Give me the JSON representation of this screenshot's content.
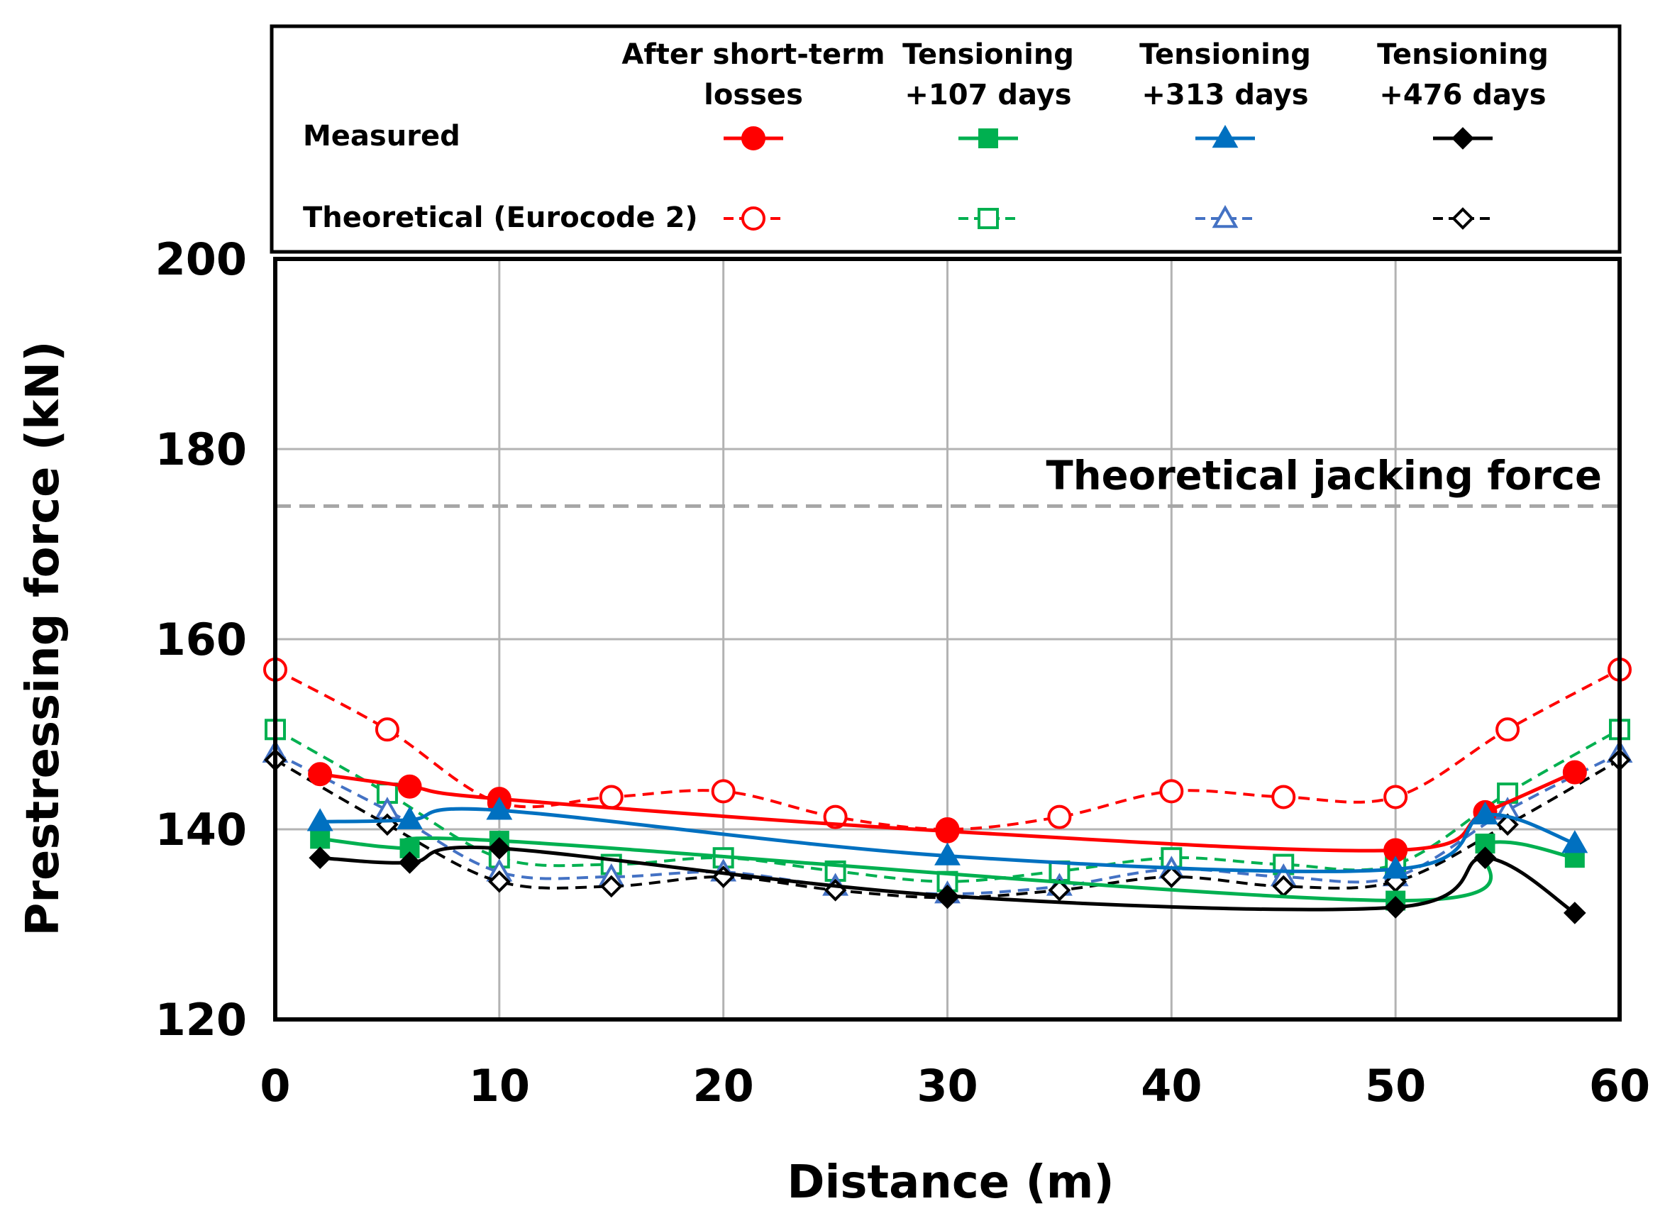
{
  "chart_data": {
    "type": "line",
    "title": "",
    "xlabel": "Distance (m)",
    "ylabel": "Prestressing force (kN)",
    "xlim": [
      0,
      60
    ],
    "ylim": [
      120,
      200
    ],
    "xticks": [
      0,
      10,
      20,
      30,
      40,
      50,
      60
    ],
    "yticks": [
      120,
      140,
      160,
      180,
      200
    ],
    "grid": true,
    "legend": {
      "placement": "top",
      "row_labels": {
        "measured": "Measured",
        "theoretical": "Theoretical (Eurocode 2)"
      },
      "columns": [
        {
          "line1": "After short-term",
          "line2": "losses"
        },
        {
          "line1": "Tensioning",
          "line2": "+107 days"
        },
        {
          "line1": "Tensioning",
          "line2": "+313 days"
        },
        {
          "line1": "Tensioning",
          "line2": "+476 days"
        }
      ]
    },
    "reference_line": {
      "label": "Theoretical jacking force",
      "value": 174,
      "color": "#a6a6a6"
    },
    "series": [
      {
        "name": "Measured - After short-term losses",
        "group": "measured",
        "color": "#ff0000",
        "marker": "circle",
        "filled": true,
        "dashed": false,
        "x": [
          2,
          6,
          10,
          30,
          50,
          54,
          58
        ],
        "y": [
          145.8,
          144.5,
          143.2,
          139.8,
          137.8,
          141.8,
          146.0
        ]
      },
      {
        "name": "Measured - Tensioning +107 days",
        "group": "measured",
        "color": "#00b050",
        "marker": "square",
        "filled": true,
        "dashed": false,
        "x": [
          2,
          6,
          10,
          50,
          54,
          58
        ],
        "y": [
          139.0,
          138.0,
          138.8,
          132.5,
          138.5,
          137.0
        ]
      },
      {
        "name": "Measured - Tensioning +313 days",
        "group": "measured",
        "color": "#0070c0",
        "marker": "triangle",
        "filled": true,
        "dashed": false,
        "x": [
          2,
          6,
          10,
          30,
          50,
          54,
          58
        ],
        "y": [
          140.8,
          141.0,
          142.0,
          137.2,
          135.8,
          141.5,
          138.5
        ]
      },
      {
        "name": "Measured - Tensioning +476 days",
        "group": "measured",
        "color": "#000000",
        "marker": "diamond",
        "filled": true,
        "dashed": false,
        "x": [
          2,
          6,
          10,
          30,
          50,
          54,
          58
        ],
        "y": [
          137.0,
          136.5,
          138.0,
          133.0,
          131.8,
          137.0,
          131.2
        ]
      },
      {
        "name": "Theoretical - After short-term losses",
        "group": "theoretical",
        "color": "#ff0000",
        "marker": "circle",
        "filled": false,
        "dashed": true,
        "x": [
          0,
          5,
          10,
          15,
          20,
          25,
          30,
          35,
          40,
          45,
          50,
          55,
          60
        ],
        "y": [
          156.8,
          150.5,
          142.8,
          143.4,
          144.0,
          141.3,
          140.0,
          141.3,
          144.0,
          143.4,
          143.4,
          150.5,
          156.8
        ]
      },
      {
        "name": "Theoretical - Tensioning +107 days",
        "group": "theoretical",
        "color": "#00b050",
        "marker": "square",
        "filled": false,
        "dashed": true,
        "x": [
          0,
          5,
          10,
          15,
          20,
          25,
          30,
          35,
          40,
          45,
          50,
          55,
          60
        ],
        "y": [
          150.5,
          143.8,
          137.0,
          136.3,
          137.0,
          135.6,
          134.5,
          135.6,
          137.0,
          136.3,
          136.3,
          143.8,
          150.5
        ]
      },
      {
        "name": "Theoretical - Tensioning +313 days",
        "group": "theoretical",
        "color": "#4472c4",
        "marker": "triangle",
        "filled": false,
        "dashed": true,
        "x": [
          0,
          5,
          10,
          15,
          20,
          25,
          30,
          35,
          40,
          45,
          50,
          55,
          60
        ],
        "y": [
          148.0,
          142.0,
          135.5,
          135.0,
          135.5,
          134.0,
          133.2,
          134.0,
          135.8,
          135.0,
          135.0,
          142.0,
          148.0
        ]
      },
      {
        "name": "Theoretical - Tensioning +476 days",
        "group": "theoretical",
        "color": "#000000",
        "marker": "diamond",
        "filled": false,
        "dashed": true,
        "x": [
          0,
          5,
          10,
          15,
          20,
          25,
          30,
          35,
          40,
          45,
          50,
          55,
          60
        ],
        "y": [
          147.3,
          140.5,
          134.5,
          134.0,
          135.0,
          133.6,
          132.8,
          133.6,
          135.0,
          134.0,
          134.5,
          140.5,
          147.3
        ]
      }
    ]
  }
}
